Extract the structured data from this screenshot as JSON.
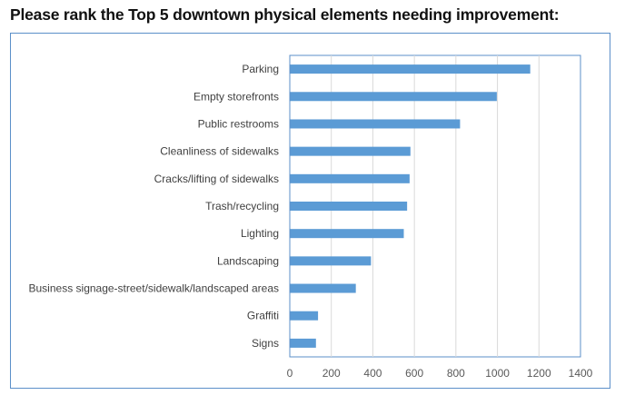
{
  "title": "Please rank the Top 5 downtown physical elements needing improvement:",
  "chart_data": {
    "type": "bar",
    "orientation": "horizontal",
    "title": "Please rank the Top 5 downtown physical elements needing improvement:",
    "categories": [
      "Parking",
      "Empty storefronts",
      "Public restrooms",
      "Cleanliness of sidewalks",
      "Cracks/lifting of sidewalks",
      "Trash/recycling",
      "Lighting",
      "Landscaping",
      "Business signage-street/sidewalk/landscaped areas",
      "Graffiti",
      "Signs"
    ],
    "values": [
      1158,
      997,
      820,
      581,
      577,
      565,
      549,
      391,
      318,
      136,
      126
    ],
    "xlim": [
      0,
      1400
    ],
    "xticks": [
      "0",
      "200",
      "400",
      "600",
      "800",
      "1000",
      "1200",
      "1400"
    ],
    "grid": true,
    "bar_color": "#5b9bd5",
    "xlabel": "",
    "ylabel": ""
  }
}
